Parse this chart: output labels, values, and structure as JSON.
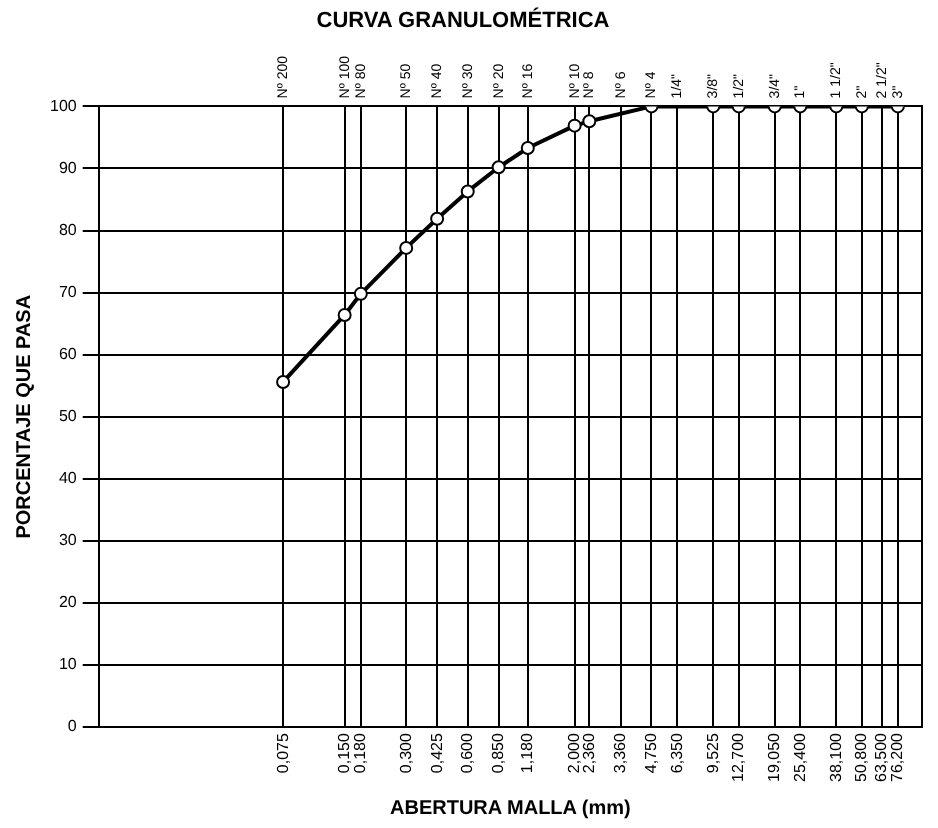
{
  "chart_data": {
    "type": "line",
    "title": "CURVA GRANULOMÉTRICA",
    "xlabel": "ABERTURA MALLA (mm)",
    "ylabel": "PORCENTAJE QUE PASA",
    "log": "x",
    "grid": true,
    "marker": "circle",
    "line_style": "solid",
    "x": [
      0.075,
      0.15,
      0.18,
      0.3,
      0.425,
      0.6,
      0.85,
      1.18,
      2.0,
      2.36,
      4.75,
      9.525,
      12.7,
      19.05,
      25.4,
      38.1,
      50.8,
      76.2
    ],
    "series": [
      {
        "color": "#000000",
        "values": [
          55.6,
          66.4,
          69.8,
          77.2,
          81.9,
          86.3,
          90.2,
          93.3,
          96.9,
          97.6,
          100,
          100,
          100,
          100,
          100,
          100,
          100,
          100
        ]
      }
    ],
    "xlim": [
      0.0094,
      100
    ],
    "ylim": [
      0,
      100
    ],
    "yticks": [
      0,
      10,
      20,
      30,
      40,
      50,
      60,
      70,
      80,
      90,
      100
    ],
    "xticks": [
      {
        "value": 0.075,
        "label": "0,075"
      },
      {
        "value": 0.15,
        "label": "0,150"
      },
      {
        "value": 0.18,
        "label": "0,180"
      },
      {
        "value": 0.3,
        "label": "0,300"
      },
      {
        "value": 0.425,
        "label": "0,425"
      },
      {
        "value": 0.6,
        "label": "0,600"
      },
      {
        "value": 0.85,
        "label": "0,850"
      },
      {
        "value": 1.18,
        "label": "1,180"
      },
      {
        "value": 2.0,
        "label": "2,000"
      },
      {
        "value": 2.36,
        "label": "2,360"
      },
      {
        "value": 3.36,
        "label": "3,360"
      },
      {
        "value": 4.75,
        "label": "4,750"
      },
      {
        "value": 6.35,
        "label": "6,350"
      },
      {
        "value": 9.525,
        "label": "9,525"
      },
      {
        "value": 12.7,
        "label": "12,700"
      },
      {
        "value": 19.05,
        "label": "19,050"
      },
      {
        "value": 25.4,
        "label": "25,400"
      },
      {
        "value": 38.1,
        "label": "38,100"
      },
      {
        "value": 50.8,
        "label": "50,800"
      },
      {
        "value": 63.5,
        "label": "63,500"
      },
      {
        "value": 76.2,
        "label": "76,200"
      }
    ],
    "annotations": [
      "Nº 200",
      "Nº 100",
      "Nº 80",
      "Nº 50",
      "Nº 40",
      "Nº 30",
      "Nº 20",
      "Nº 16",
      "Nº 10",
      "Nº 8",
      "Nº 6",
      "Nº 4",
      "1/4\"",
      "3/8\"",
      "1/2\"",
      "3/4\"",
      "1\"",
      "1 1/2\"",
      "2\"",
      "2 1/2\"",
      "3\""
    ],
    "legend": false
  }
}
